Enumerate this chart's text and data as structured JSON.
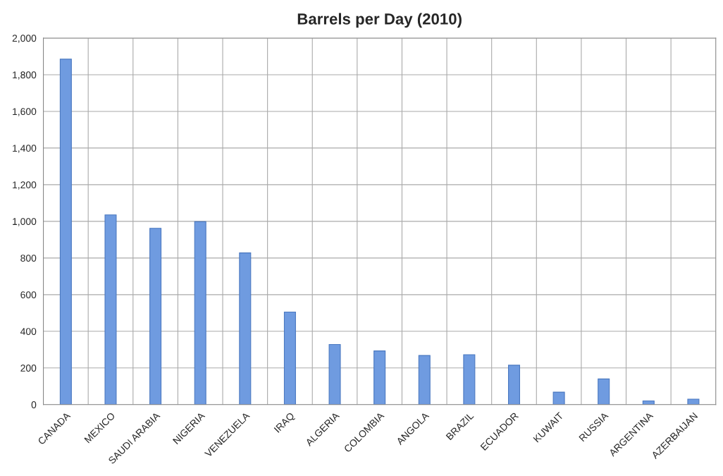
{
  "chart_data": {
    "type": "bar",
    "title": "Barrels per Day (2010)",
    "categories": [
      "CANADA",
      "MEXICO",
      "SAUDI ARABIA",
      "NIGERIA",
      "VENEZUELA",
      "IRAQ",
      "ALGERIA",
      "COLOMBIA",
      "ANGOLA",
      "BRAZIL",
      "ECUADOR",
      "KUWAIT",
      "RUSSIA",
      "ARGENTINA",
      "AZERBAIJAN"
    ],
    "values": [
      1885,
      1035,
      962,
      998,
      828,
      505,
      328,
      293,
      268,
      272,
      215,
      68,
      140,
      20,
      30
    ],
    "color": "#6f9be0",
    "ylim": [
      0,
      2000
    ],
    "yticks": [
      {
        "value": 0,
        "label": "0"
      },
      {
        "value": 200,
        "label": "200"
      },
      {
        "value": 400,
        "label": "400"
      },
      {
        "value": 600,
        "label": "600"
      },
      {
        "value": 800,
        "label": "800"
      },
      {
        "value": 1000,
        "label": "1,000"
      },
      {
        "value": 1200,
        "label": "1,200"
      },
      {
        "value": 1400,
        "label": "1,400"
      },
      {
        "value": 1600,
        "label": "1,600"
      },
      {
        "value": 1800,
        "label": "1,800"
      },
      {
        "value": 2000,
        "label": "2,000"
      }
    ],
    "grid": true,
    "legend": false
  }
}
